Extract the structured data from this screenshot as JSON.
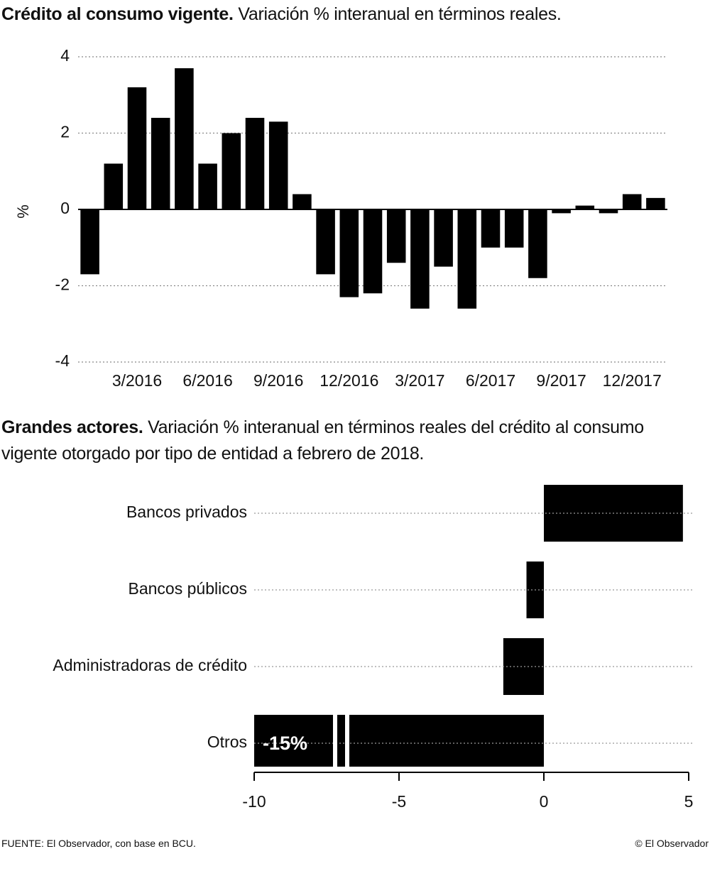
{
  "chart_data": [
    {
      "type": "bar",
      "title": "Crédito al consumo vigente.",
      "subtitle": "Variación % interanual en términos reales.",
      "ylabel": "%",
      "categories": [
        null,
        null,
        "3/2016",
        null,
        null,
        "6/2016",
        null,
        null,
        "9/2016",
        null,
        null,
        "12/2016",
        null,
        null,
        "3/2017",
        null,
        null,
        "6/2017",
        null,
        null,
        "9/2017",
        null,
        null,
        "12/2017",
        null
      ],
      "values": [
        -1.7,
        1.2,
        3.2,
        2.4,
        3.7,
        1.2,
        2.0,
        2.4,
        2.3,
        0.4,
        -1.7,
        -2.3,
        -2.2,
        -1.4,
        -2.6,
        -1.5,
        -2.6,
        -1.0,
        -1.0,
        -1.8,
        -0.1,
        0.1,
        -0.1,
        0.4,
        0.3
      ],
      "color": "#000000",
      "ylim": [
        -4,
        4
      ],
      "yticks": [
        -4,
        -2,
        0,
        2,
        4
      ],
      "grid": true
    },
    {
      "type": "hbar",
      "title": "Grandes actores.",
      "subtitle": "Variación % interanual en términos reales del crédito al consumo vigente otorgado por tipo de entidad a febrero de 2018.",
      "categories": [
        "Bancos privados",
        "Bancos públicos",
        "Administradoras de crédito",
        "Otros"
      ],
      "values": [
        4.8,
        -0.6,
        -1.4,
        -15
      ],
      "value_labels": [
        null,
        null,
        null,
        "-15%"
      ],
      "color": "#000000",
      "xlim": [
        -10,
        5
      ],
      "xticks": [
        -10,
        -5,
        0,
        5
      ],
      "grid": true
    }
  ],
  "footer": {
    "source": "FUENTE: El Observador, con base en BCU.",
    "credit": "© El Observador"
  }
}
